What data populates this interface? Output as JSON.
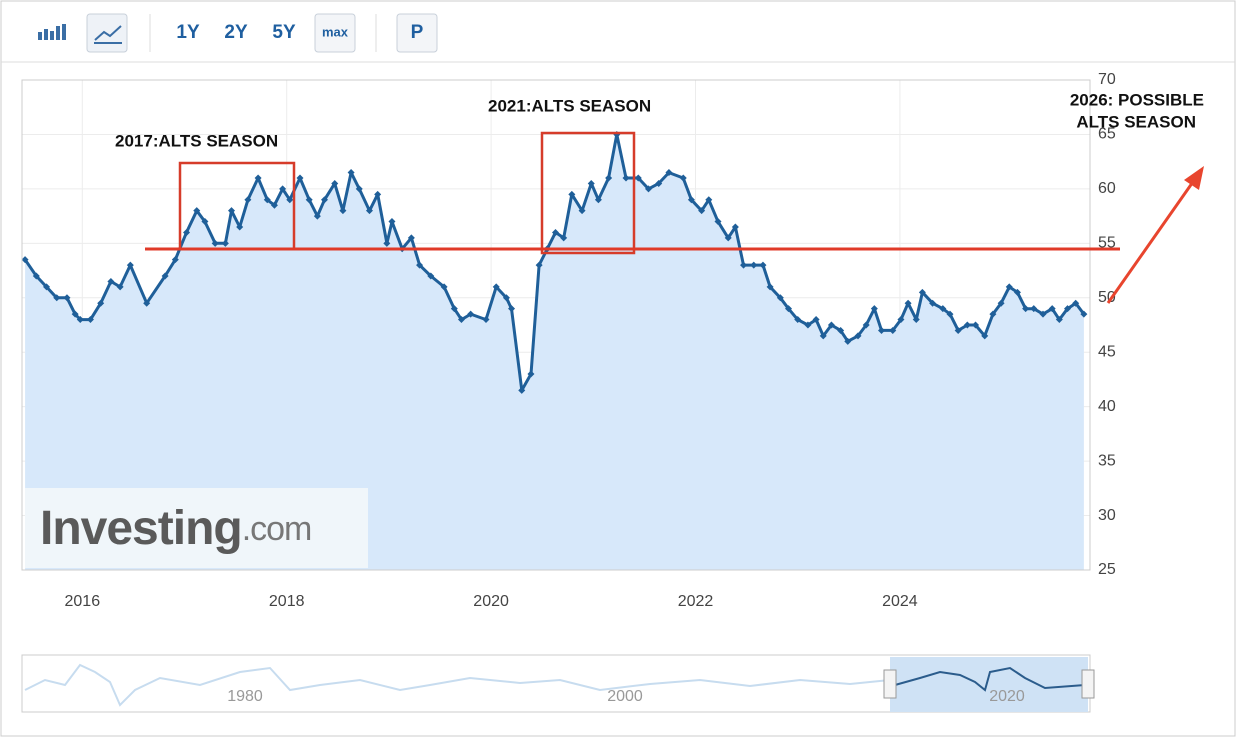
{
  "toolbar": {
    "buttons": [
      "1Y",
      "2Y",
      "5Y",
      "max",
      "P"
    ]
  },
  "logo": {
    "brand": "Investing",
    "suffix": ".com"
  },
  "navigator": {
    "labels": [
      "1980",
      "2000",
      "2020"
    ]
  },
  "chart_data": {
    "type": "line",
    "annotations": [
      "2017:ALTS SEASON",
      "2021:ALTS SEASON",
      "2026: POSSIBLE",
      "ALTS SEASON"
    ],
    "color": "#1f5f99",
    "fill_color": "#d7e8fa",
    "xlim": [
      2015.41,
      2025.86
    ],
    "xticks": [
      2016,
      2018,
      2020,
      2022,
      2024
    ],
    "ylim": [
      25,
      70
    ],
    "yticks": [
      25,
      30,
      35,
      40,
      45,
      50,
      55,
      60,
      65,
      70
    ],
    "grid": true,
    "x": [
      2015.44,
      2015.55,
      2015.65,
      2015.75,
      2015.85,
      2015.93,
      2015.98,
      2016.08,
      2016.18,
      2016.28,
      2016.37,
      2016.47,
      2016.63,
      2016.81,
      2016.91,
      2017.02,
      2017.12,
      2017.2,
      2017.3,
      2017.4,
      2017.46,
      2017.54,
      2017.62,
      2017.72,
      2017.81,
      2017.88,
      2017.96,
      2018.03,
      2018.13,
      2018.22,
      2018.3,
      2018.37,
      2018.47,
      2018.55,
      2018.63,
      2018.71,
      2018.81,
      2018.89,
      2018.98,
      2019.03,
      2019.13,
      2019.22,
      2019.3,
      2019.41,
      2019.54,
      2019.64,
      2019.71,
      2019.8,
      2019.95,
      2020.05,
      2020.15,
      2020.2,
      2020.3,
      2020.39,
      2020.47,
      2020.55,
      2020.63,
      2020.71,
      2020.79,
      2020.89,
      2020.98,
      2021.05,
      2021.15,
      2021.23,
      2021.32,
      2021.44,
      2021.54,
      2021.64,
      2021.74,
      2021.88,
      2021.96,
      2022.06,
      2022.13,
      2022.22,
      2022.32,
      2022.39,
      2022.47,
      2022.57,
      2022.66,
      2022.73,
      2022.83,
      2022.91,
      2023.0,
      2023.1,
      2023.18,
      2023.25,
      2023.33,
      2023.42,
      2023.49,
      2023.59,
      2023.67,
      2023.75,
      2023.82,
      2023.93,
      2024.01,
      2024.08,
      2024.16,
      2024.22,
      2024.32,
      2024.42,
      2024.49,
      2024.57,
      2024.66,
      2024.74,
      2024.83,
      2024.91,
      2024.99,
      2025.07,
      2025.15,
      2025.23,
      2025.31,
      2025.4,
      2025.49,
      2025.56,
      2025.64,
      2025.72,
      2025.8
    ],
    "values": [
      53.5,
      52,
      51,
      50,
      50,
      48.5,
      48,
      48,
      49.5,
      51.5,
      51,
      53,
      49.5,
      52,
      53.5,
      56,
      58,
      57,
      55,
      55,
      58,
      56.5,
      59,
      61,
      59,
      58.5,
      60,
      59,
      61,
      59,
      57.5,
      59,
      60.5,
      58,
      61.5,
      60,
      58,
      59.5,
      55,
      57,
      54.5,
      55.5,
      53,
      52,
      51,
      49,
      48,
      48.5,
      48,
      51,
      50,
      49,
      41.5,
      43,
      53,
      54.5,
      56,
      55.5,
      59.5,
      58,
      60.5,
      59,
      61,
      65,
      61,
      61,
      60,
      60.5,
      61.5,
      61,
      59,
      58,
      59,
      57,
      55.5,
      56.5,
      53,
      53,
      53,
      51,
      50,
      49,
      48,
      47.5,
      48,
      46.5,
      47.5,
      47,
      46,
      46.5,
      47.5,
      49,
      47,
      47,
      48,
      49.5,
      48,
      50.5,
      49.5,
      49,
      48.5,
      47,
      47.5,
      47.5,
      46.5,
      48.5,
      49.5,
      51,
      50.5,
      49,
      49,
      48.5,
      49,
      48,
      49,
      49.5,
      48.5
    ]
  }
}
